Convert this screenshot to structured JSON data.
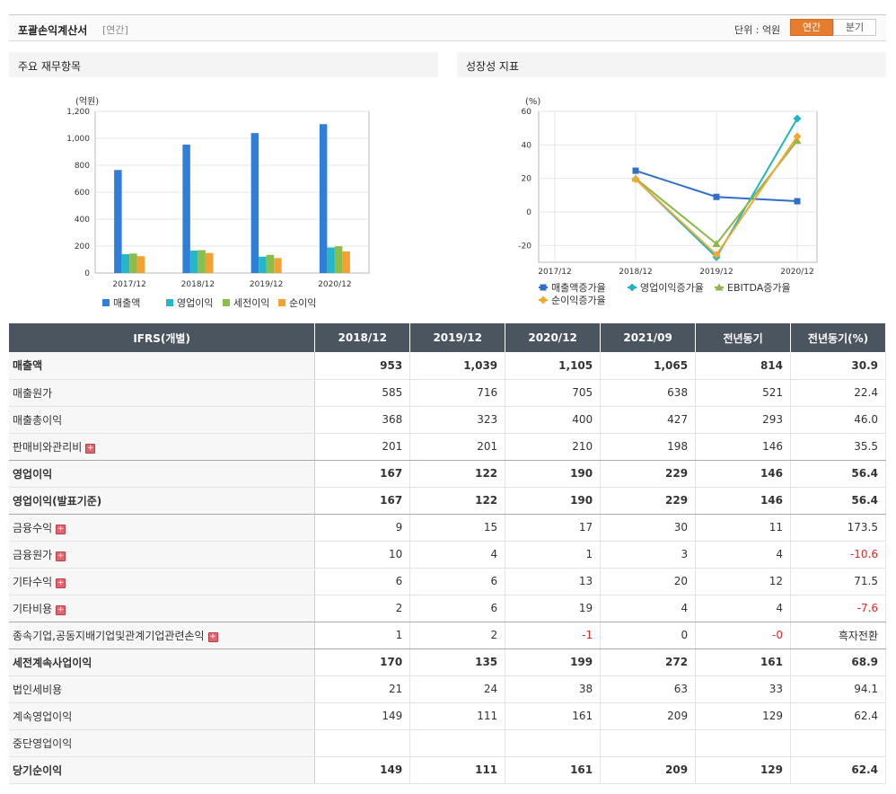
{
  "header": {
    "title": "포괄손익계산서",
    "subtitle": "[연간]",
    "unit": "단위 : 억원",
    "toggle": [
      "연간",
      "분기"
    ]
  },
  "panels": {
    "left_title": "주요 재무항목",
    "right_title": "성장성 지표"
  },
  "chart_data": [
    {
      "type": "bar",
      "unit_label": "(억원)",
      "categories": [
        "2017/12",
        "2018/12",
        "2019/12",
        "2020/12"
      ],
      "yticks": [
        "0",
        "200",
        "400",
        "600",
        "800",
        "1,000",
        "1,200"
      ],
      "ylim": [
        0,
        1200
      ],
      "series": [
        {
          "name": "매출액",
          "color": "#2f7ed8",
          "values": [
            765,
            953,
            1039,
            1105
          ]
        },
        {
          "name": "영업이익",
          "color": "#24b6c9",
          "values": [
            140,
            167,
            122,
            190
          ]
        },
        {
          "name": "세전이익",
          "color": "#8bbd4b",
          "values": [
            145,
            170,
            135,
            199
          ]
        },
        {
          "name": "순이익",
          "color": "#f5a030",
          "values": [
            125,
            149,
            111,
            161
          ]
        }
      ]
    },
    {
      "type": "line",
      "unit_label": "(%)",
      "categories": [
        "2017/12",
        "2018/12",
        "2019/12",
        "2020/12"
      ],
      "yticks": [
        "-20",
        "0",
        "20",
        "40",
        "60"
      ],
      "ylim": [
        -30,
        60
      ],
      "series": [
        {
          "name": "매출액증가율",
          "color": "#2f6fc9",
          "marker": "square",
          "values": [
            null,
            24.6,
            9.0,
            6.4
          ]
        },
        {
          "name": "영업이익증가율",
          "color": "#1fb5c2",
          "marker": "diamond",
          "values": [
            null,
            19.6,
            -27.0,
            55.7
          ]
        },
        {
          "name": "EBITDA증가율",
          "color": "#8ab84a",
          "marker": "triangle",
          "values": [
            null,
            20.0,
            -19.0,
            42.5
          ]
        },
        {
          "name": "순이익증가율",
          "color": "#f0a830",
          "marker": "diamond",
          "values": [
            null,
            19.5,
            -25.5,
            45.0
          ]
        }
      ]
    }
  ],
  "table": {
    "headers": [
      "IFRS(개별)",
      "2018/12",
      "2019/12",
      "2020/12",
      "2021/09",
      "전년동기",
      "전년동기(%)"
    ],
    "rows": [
      {
        "label": "매출액",
        "values": [
          "953",
          "1,039",
          "1,105",
          "1,065",
          "814",
          "30.9"
        ],
        "bold": true,
        "expand": false
      },
      {
        "label": "매출원가",
        "values": [
          "585",
          "716",
          "705",
          "638",
          "521",
          "22.4"
        ],
        "bold": false,
        "expand": false
      },
      {
        "label": "매출총이익",
        "values": [
          "368",
          "323",
          "400",
          "427",
          "293",
          "46.0"
        ],
        "bold": false,
        "expand": false
      },
      {
        "label": "판매비와관리비",
        "values": [
          "201",
          "201",
          "210",
          "198",
          "146",
          "35.5"
        ],
        "bold": false,
        "expand": true
      },
      {
        "label": "영업이익",
        "values": [
          "167",
          "122",
          "190",
          "229",
          "146",
          "56.4"
        ],
        "bold": true,
        "expand": false
      },
      {
        "label": "영업이익(발표기준)",
        "values": [
          "167",
          "122",
          "190",
          "229",
          "146",
          "56.4"
        ],
        "bold": true,
        "expand": false
      },
      {
        "label": "금융수익",
        "values": [
          "9",
          "15",
          "17",
          "30",
          "11",
          "173.5"
        ],
        "bold": false,
        "expand": true
      },
      {
        "label": "금융원가",
        "values": [
          "10",
          "4",
          "1",
          "3",
          "4",
          "-10.6"
        ],
        "bold": false,
        "expand": true
      },
      {
        "label": "기타수익",
        "values": [
          "6",
          "6",
          "13",
          "20",
          "12",
          "71.5"
        ],
        "bold": false,
        "expand": true
      },
      {
        "label": "기타비용",
        "values": [
          "2",
          "6",
          "19",
          "4",
          "4",
          "-7.6"
        ],
        "bold": false,
        "expand": true
      },
      {
        "label": "종속기업,공동지배기업및관계기업관련손익",
        "values": [
          "1",
          "2",
          "-1",
          "0",
          "-0",
          "흑자전환"
        ],
        "bold": false,
        "expand": true
      },
      {
        "label": "세전계속사업이익",
        "values": [
          "170",
          "135",
          "199",
          "272",
          "161",
          "68.9"
        ],
        "bold": true,
        "expand": false
      },
      {
        "label": "법인세비용",
        "values": [
          "21",
          "24",
          "38",
          "63",
          "33",
          "94.1"
        ],
        "bold": false,
        "expand": false
      },
      {
        "label": "계속영업이익",
        "values": [
          "149",
          "111",
          "161",
          "209",
          "129",
          "62.4"
        ],
        "bold": false,
        "expand": false
      },
      {
        "label": "중단영업이익",
        "values": [
          "",
          "",
          "",
          "",
          "",
          ""
        ],
        "bold": false,
        "expand": false
      },
      {
        "label": "당기순이익",
        "values": [
          "149",
          "111",
          "161",
          "209",
          "129",
          "62.4"
        ],
        "bold": true,
        "expand": false
      }
    ]
  }
}
